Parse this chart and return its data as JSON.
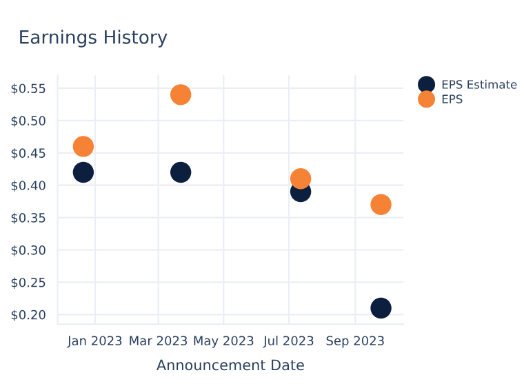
{
  "chart_data": {
    "type": "scatter",
    "title": "Earnings History",
    "xlabel": "Announcement Date",
    "x": [
      "2022-12-21",
      "2023-03-22",
      "2023-07-12",
      "2023-09-25"
    ],
    "series": [
      {
        "name": "EPS Estimate",
        "color": "#0c1f3f",
        "values": [
          0.42,
          0.42,
          0.39,
          0.21
        ]
      },
      {
        "name": "EPS",
        "color": "#f58235",
        "values": [
          0.46,
          0.54,
          0.41,
          0.37
        ]
      }
    ],
    "xlim": [
      "2022-11-27",
      "2023-10-16"
    ],
    "xticks": [
      {
        "value": "2023-01-01",
        "label": "Jan 2023"
      },
      {
        "value": "2023-03-01",
        "label": "Mar 2023"
      },
      {
        "value": "2023-05-01",
        "label": "May 2023"
      },
      {
        "value": "2023-07-01",
        "label": "Jul 2023"
      },
      {
        "value": "2023-09-01",
        "label": "Sep 2023"
      }
    ],
    "ylim": [
      0.185,
      0.57
    ],
    "yticks": [
      {
        "value": 0.2,
        "label": "$0.20"
      },
      {
        "value": 0.25,
        "label": "$0.25"
      },
      {
        "value": 0.3,
        "label": "$0.30"
      },
      {
        "value": 0.35,
        "label": "$0.35"
      },
      {
        "value": 0.4,
        "label": "$0.40"
      },
      {
        "value": 0.45,
        "label": "$0.45"
      },
      {
        "value": 0.5,
        "label": "$0.50"
      },
      {
        "value": 0.55,
        "label": "$0.55"
      }
    ],
    "grid": true,
    "legend": "top right",
    "marker": "circle"
  }
}
